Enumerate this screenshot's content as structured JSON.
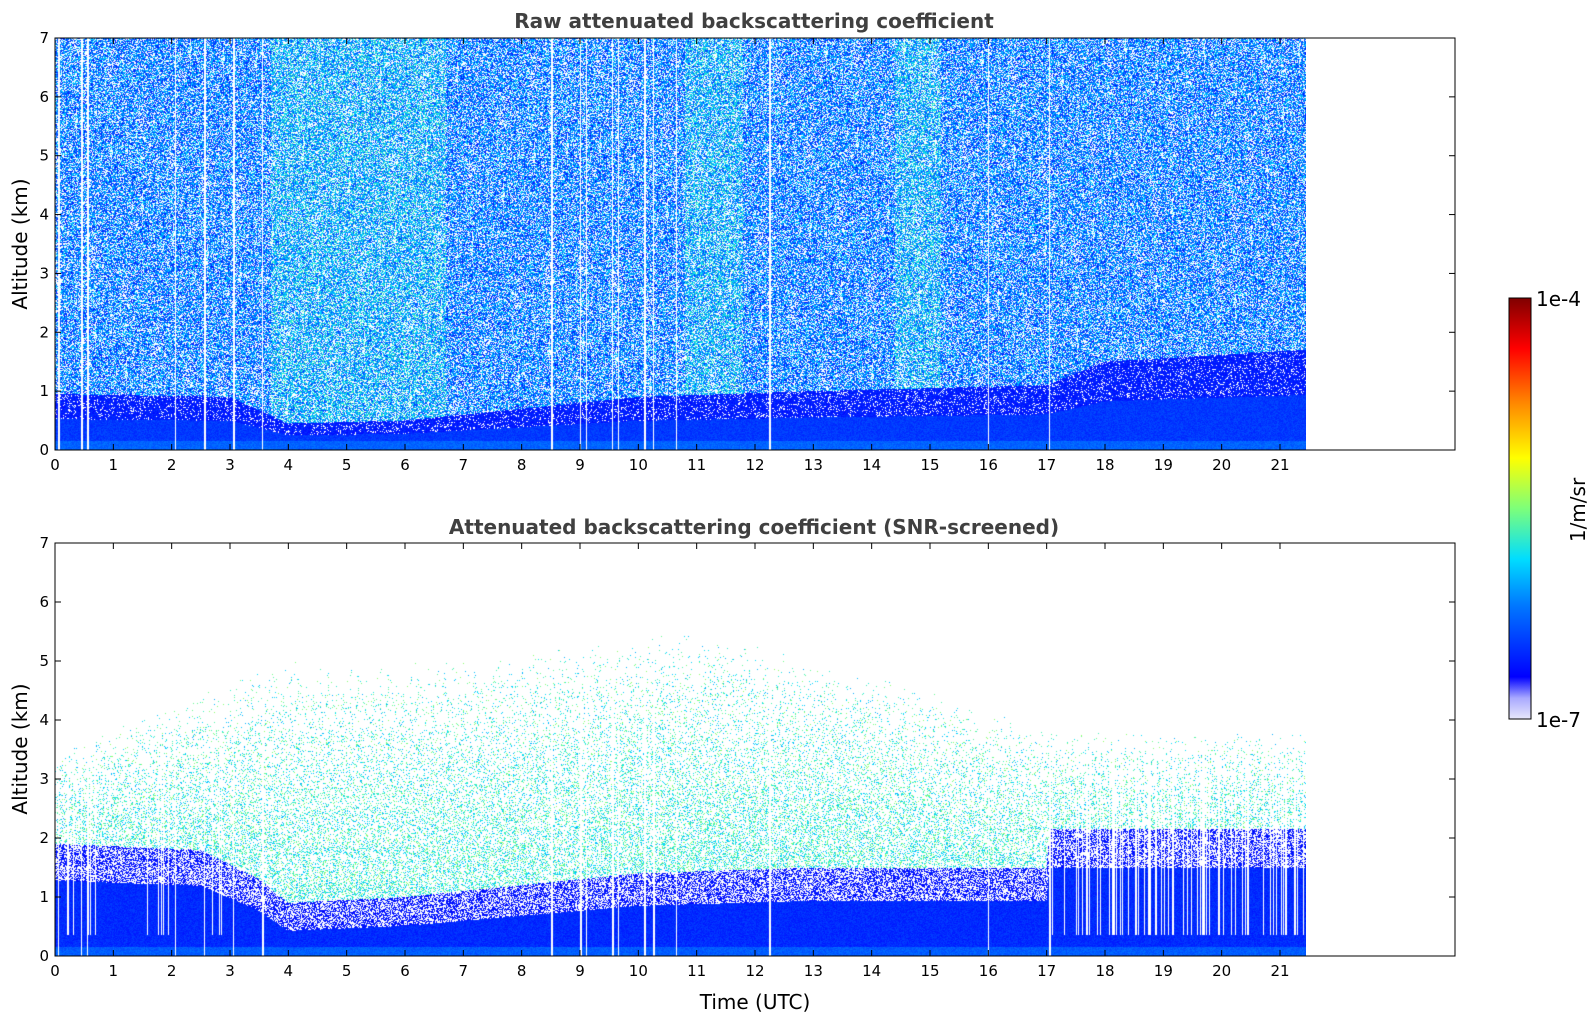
{
  "chart_data": [
    {
      "type": "heatmap",
      "title": "Raw attenuated backscattering coefficient",
      "xlabel": "",
      "ylabel": "Altitude (km)",
      "xlim": [
        0,
        24
      ],
      "ylim": [
        0,
        7
      ],
      "x_ticks": [
        "0",
        "1",
        "2",
        "3",
        "4",
        "5",
        "6",
        "7",
        "8",
        "9",
        "10",
        "11",
        "12",
        "13",
        "14",
        "15",
        "16",
        "17",
        "18",
        "19",
        "20",
        "21"
      ],
      "y_ticks": [
        "0",
        "1",
        "2",
        "3",
        "4",
        "5",
        "6",
        "7"
      ],
      "data_extent_hours": [
        0,
        21.45
      ],
      "grid": false,
      "gap_times_hours": [
        0.05,
        0.45,
        0.55,
        2.05,
        2.55,
        3.05,
        3.55,
        8.5,
        9.0,
        9.1,
        9.55,
        9.65,
        10.1,
        10.25,
        10.65,
        12.25,
        16.0,
        17.05
      ],
      "features": {
        "boundary_layer_top_km": [
          [
            0,
            0.95
          ],
          [
            3,
            0.9
          ],
          [
            4,
            0.45
          ],
          [
            6,
            0.5
          ],
          [
            8,
            0.7
          ],
          [
            10,
            0.9
          ],
          [
            13,
            1.0
          ],
          [
            17,
            1.1
          ],
          [
            18,
            1.5
          ],
          [
            21.45,
            1.7
          ]
        ]
      }
    },
    {
      "type": "heatmap",
      "title": "Attenuated backscattering coefficient (SNR-screened)",
      "xlabel": "Time (UTC)",
      "ylabel": "Altitude (km)",
      "xlim": [
        0,
        24
      ],
      "ylim": [
        0,
        7
      ],
      "x_ticks": [
        "0",
        "1",
        "2",
        "3",
        "4",
        "5",
        "6",
        "7",
        "8",
        "9",
        "10",
        "11",
        "12",
        "13",
        "14",
        "15",
        "16",
        "17",
        "18",
        "19",
        "20",
        "21"
      ],
      "y_ticks": [
        "0",
        "1",
        "2",
        "3",
        "4",
        "5",
        "6",
        "7"
      ],
      "data_extent_hours": [
        0,
        21.45
      ],
      "grid": false,
      "features": {
        "screened_ceiling_km": [
          [
            0,
            3.5
          ],
          [
            4,
            5.0
          ],
          [
            7,
            5.0
          ],
          [
            11,
            5.5
          ],
          [
            15,
            4.5
          ],
          [
            17,
            3.8
          ],
          [
            21.45,
            3.8
          ]
        ],
        "dense_layer_top_km": [
          [
            0,
            1.5
          ],
          [
            2.5,
            1.4
          ],
          [
            3.5,
            0.9
          ],
          [
            4,
            0.5
          ],
          [
            6,
            0.6
          ],
          [
            8,
            0.8
          ],
          [
            10,
            1.0
          ],
          [
            13,
            1.1
          ],
          [
            17,
            1.1
          ],
          [
            17.05,
            1.75
          ],
          [
            21.45,
            1.75
          ]
        ]
      }
    }
  ],
  "colorbar": {
    "label": "1/m/sr",
    "max_label": "1e-4",
    "min_label": "1e-7",
    "scale": "log",
    "colormap": "jet",
    "colors": [
      "#e8e8fb",
      "#8888ff",
      "#0000ff",
      "#0080ff",
      "#00e0ff",
      "#80ff80",
      "#ffff00",
      "#ff8000",
      "#ff0000",
      "#800000"
    ]
  }
}
